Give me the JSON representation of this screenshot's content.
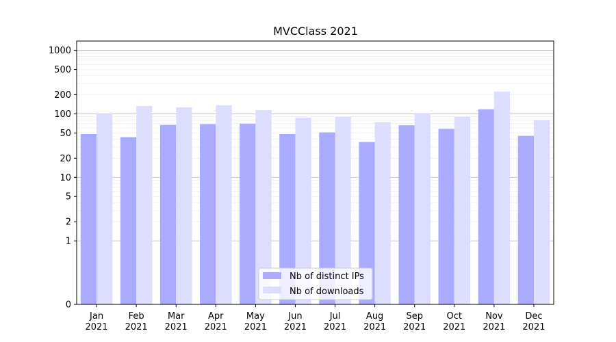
{
  "chart_data": {
    "type": "bar",
    "title": "MVCClass 2021",
    "xlabel": "",
    "ylabel": "",
    "y_scale": "symlog",
    "ylim": [
      0,
      1400
    ],
    "y_ticks": [
      0,
      1,
      2,
      5,
      10,
      20,
      50,
      100,
      200,
      500,
      1000
    ],
    "y_tick_labels": [
      "0",
      "1",
      "2",
      "5",
      "10",
      "20",
      "50",
      "100",
      "200",
      "500",
      "1000"
    ],
    "categories": [
      [
        "Jan",
        "2021"
      ],
      [
        "Feb",
        "2021"
      ],
      [
        "Mar",
        "2021"
      ],
      [
        "Apr",
        "2021"
      ],
      [
        "May",
        "2021"
      ],
      [
        "Jun",
        "2021"
      ],
      [
        "Jul",
        "2021"
      ],
      [
        "Aug",
        "2021"
      ],
      [
        "Sep",
        "2021"
      ],
      [
        "Oct",
        "2021"
      ],
      [
        "Nov",
        "2021"
      ],
      [
        "Dec",
        "2021"
      ]
    ],
    "series": [
      {
        "name": "Nb of distinct IPs",
        "color": "#aaaaff",
        "values": [
          48,
          43,
          67,
          69,
          70,
          48,
          51,
          36,
          66,
          58,
          118,
          45
        ]
      },
      {
        "name": "Nb of downloads",
        "color": "#ddddff",
        "values": [
          100,
          133,
          126,
          136,
          114,
          87,
          90,
          74,
          103,
          90,
          224,
          79
        ]
      }
    ],
    "grid": true,
    "legend_position": "bottom-center"
  }
}
